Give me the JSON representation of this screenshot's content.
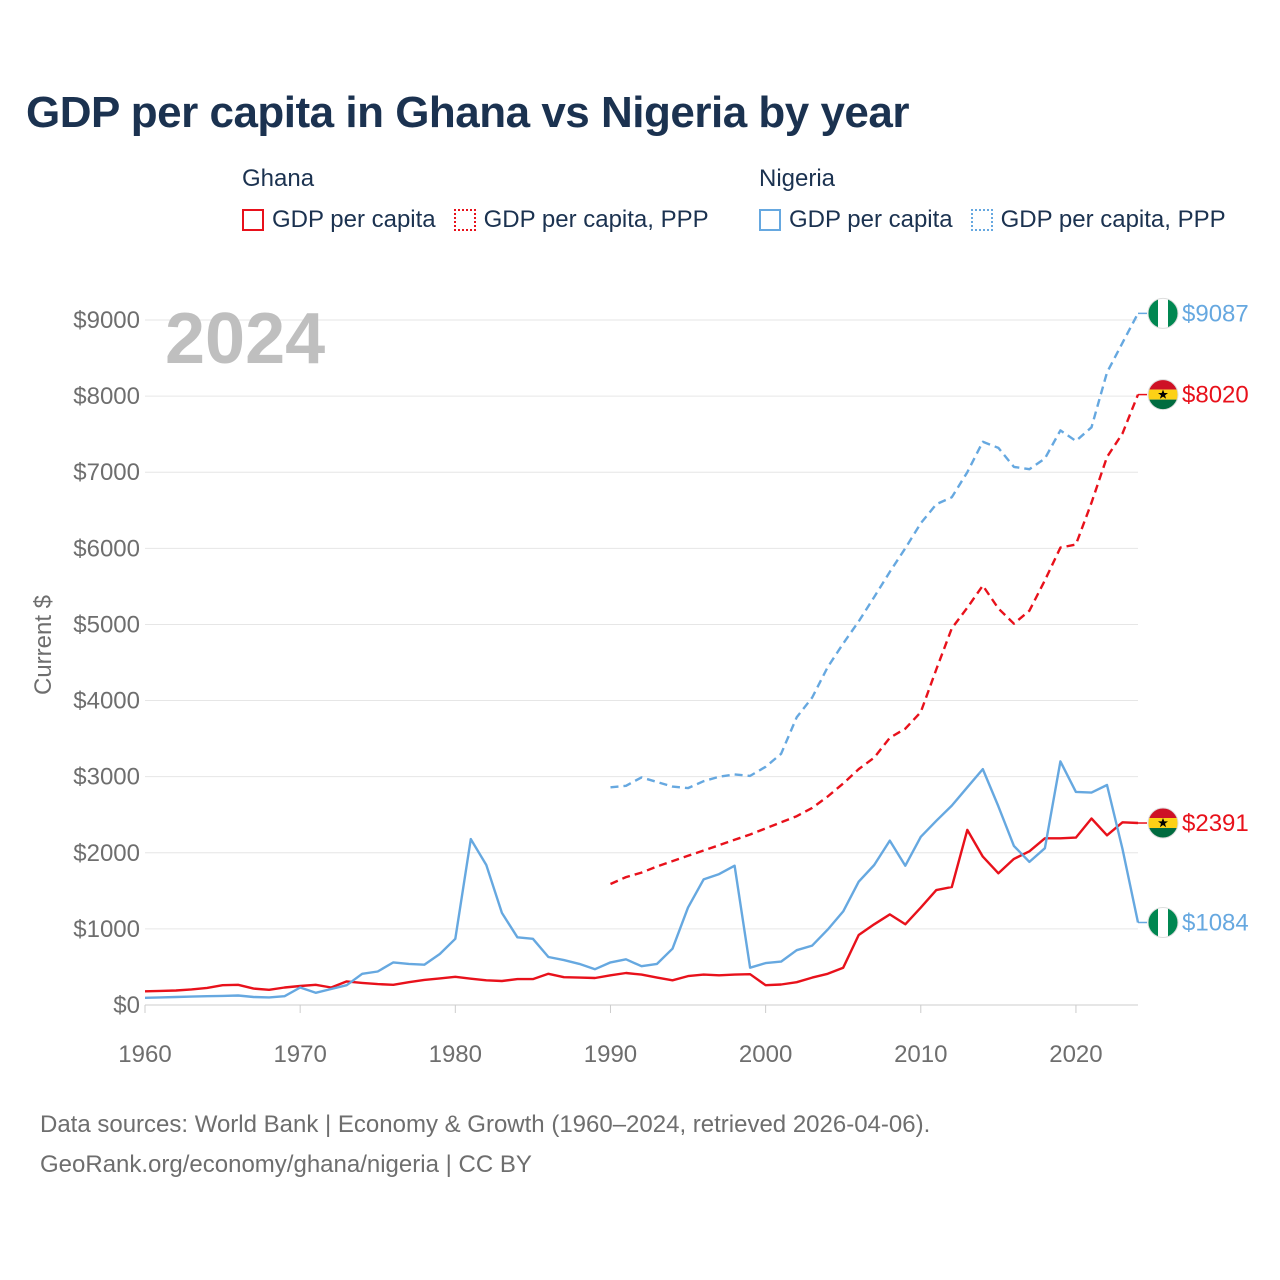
{
  "title": "GDP per capita in Ghana vs Nigeria by year",
  "legend": {
    "groups": [
      {
        "name": "Ghana",
        "color": "#e8111b",
        "items": [
          {
            "label": "GDP per capita",
            "style": "solid"
          },
          {
            "label": "GDP per capita, PPP",
            "style": "dotted"
          }
        ]
      },
      {
        "name": "Nigeria",
        "color": "#66a8e0",
        "items": [
          {
            "label": "GDP per capita",
            "style": "solid"
          },
          {
            "label": "GDP per capita, PPP",
            "style": "dotted"
          }
        ]
      }
    ]
  },
  "year_label": "2024",
  "footer": {
    "line1": "Data sources: World Bank | Economy & Growth (1960–2024, retrieved 2026-04-06).",
    "line2": "GeoRank.org/economy/ghana/nigeria | CC BY"
  },
  "chart_data": {
    "type": "line",
    "title": "GDP per capita in Ghana vs Nigeria by year",
    "ylabel": "Current $",
    "xlabel": "",
    "xlim": [
      1960,
      2024
    ],
    "ylim": [
      0,
      9000
    ],
    "x_ticks": [
      1960,
      1970,
      1980,
      1990,
      2000,
      2010,
      2020
    ],
    "y_ticks": [
      0,
      1000,
      2000,
      3000,
      4000,
      5000,
      6000,
      7000,
      8000,
      9000
    ],
    "y_tick_labels": [
      "$0",
      "$1000",
      "$2000",
      "$3000",
      "$4000",
      "$5000",
      "$6000",
      "$7000",
      "$8000",
      "$9000"
    ],
    "grid": true,
    "series": [
      {
        "name": "Ghana GDP per capita",
        "country": "Ghana",
        "dash": "solid",
        "color": "#e8111b",
        "end_label": "$2391",
        "x": [
          1960,
          1961,
          1962,
          1963,
          1964,
          1965,
          1966,
          1967,
          1968,
          1969,
          1970,
          1971,
          1972,
          1973,
          1974,
          1975,
          1976,
          1977,
          1978,
          1979,
          1980,
          1981,
          1982,
          1983,
          1984,
          1985,
          1986,
          1987,
          1988,
          1989,
          1990,
          1991,
          1992,
          1993,
          1994,
          1995,
          1996,
          1997,
          1998,
          1999,
          2000,
          2001,
          2002,
          2003,
          2004,
          2005,
          2006,
          2007,
          2008,
          2009,
          2010,
          2011,
          2012,
          2013,
          2014,
          2015,
          2016,
          2017,
          2018,
          2019,
          2020,
          2021,
          2022,
          2023,
          2024
        ],
        "values": [
          180,
          185,
          190,
          205,
          225,
          260,
          265,
          215,
          200,
          230,
          250,
          265,
          230,
          310,
          290,
          275,
          265,
          300,
          330,
          350,
          370,
          345,
          325,
          315,
          340,
          340,
          410,
          365,
          360,
          355,
          390,
          420,
          400,
          360,
          325,
          380,
          400,
          390,
          400,
          405,
          260,
          270,
          300,
          360,
          410,
          490,
          920,
          1060,
          1190,
          1060,
          1280,
          1510,
          1550,
          2300,
          1950,
          1730,
          1920,
          2020,
          2190,
          2190,
          2200,
          2450,
          2230,
          2400,
          2391
        ]
      },
      {
        "name": "Ghana GDP per capita, PPP",
        "country": "Ghana",
        "dash": "dashed",
        "color": "#e8111b",
        "end_label": "$8020",
        "x": [
          1990,
          1991,
          1992,
          1993,
          1994,
          1995,
          1996,
          1997,
          1998,
          1999,
          2000,
          2001,
          2002,
          2003,
          2004,
          2005,
          2006,
          2007,
          2008,
          2009,
          2010,
          2011,
          2012,
          2013,
          2014,
          2015,
          2016,
          2017,
          2018,
          2019,
          2020,
          2021,
          2022,
          2023,
          2024
        ],
        "values": [
          1590,
          1680,
          1740,
          1820,
          1890,
          1960,
          2030,
          2100,
          2170,
          2240,
          2320,
          2400,
          2480,
          2590,
          2740,
          2910,
          3100,
          3250,
          3510,
          3630,
          3850,
          4410,
          4950,
          5220,
          5510,
          5210,
          5010,
          5180,
          5580,
          6010,
          6050,
          6600,
          7200,
          7510,
          8020
        ]
      },
      {
        "name": "Nigeria GDP per capita",
        "country": "Nigeria",
        "dash": "solid",
        "color": "#66a8e0",
        "end_label": "$1084",
        "x": [
          1960,
          1961,
          1962,
          1963,
          1964,
          1965,
          1966,
          1967,
          1968,
          1969,
          1970,
          1971,
          1972,
          1973,
          1974,
          1975,
          1976,
          1977,
          1978,
          1979,
          1980,
          1981,
          1982,
          1983,
          1984,
          1985,
          1986,
          1987,
          1988,
          1989,
          1990,
          1991,
          1992,
          1993,
          1994,
          1995,
          1996,
          1997,
          1998,
          1999,
          2000,
          2001,
          2002,
          2003,
          2004,
          2005,
          2006,
          2007,
          2008,
          2009,
          2010,
          2011,
          2012,
          2013,
          2014,
          2015,
          2016,
          2017,
          2018,
          2019,
          2020,
          2021,
          2022,
          2023,
          2024
        ],
        "values": [
          95,
          100,
          105,
          110,
          115,
          120,
          125,
          105,
          100,
          115,
          230,
          160,
          210,
          260,
          410,
          440,
          560,
          540,
          530,
          670,
          870,
          2180,
          1840,
          1210,
          890,
          870,
          630,
          590,
          540,
          470,
          560,
          600,
          510,
          540,
          740,
          1280,
          1650,
          1720,
          1830,
          490,
          550,
          570,
          720,
          780,
          990,
          1230,
          1620,
          1840,
          2160,
          1830,
          2210,
          2420,
          2620,
          2860,
          3100,
          2610,
          2090,
          1880,
          2060,
          3200,
          2800,
          2790,
          2890,
          2050,
          1084
        ]
      },
      {
        "name": "Nigeria GDP per capita, PPP",
        "country": "Nigeria",
        "dash": "dashed",
        "color": "#66a8e0",
        "end_label": "$9087",
        "x": [
          1990,
          1991,
          1992,
          1993,
          1994,
          1995,
          1996,
          1997,
          1998,
          1999,
          2000,
          2001,
          2002,
          2003,
          2004,
          2005,
          2006,
          2007,
          2008,
          2009,
          2010,
          2011,
          2012,
          2013,
          2014,
          2015,
          2016,
          2017,
          2018,
          2019,
          2020,
          2021,
          2022,
          2023,
          2024
        ],
        "values": [
          2860,
          2880,
          2990,
          2930,
          2870,
          2850,
          2940,
          3000,
          3030,
          3010,
          3130,
          3300,
          3780,
          4040,
          4440,
          4750,
          5040,
          5360,
          5690,
          6000,
          6330,
          6580,
          6670,
          7000,
          7400,
          7320,
          7070,
          7040,
          7180,
          7550,
          7410,
          7590,
          8310,
          8700,
          9087
        ]
      }
    ]
  }
}
